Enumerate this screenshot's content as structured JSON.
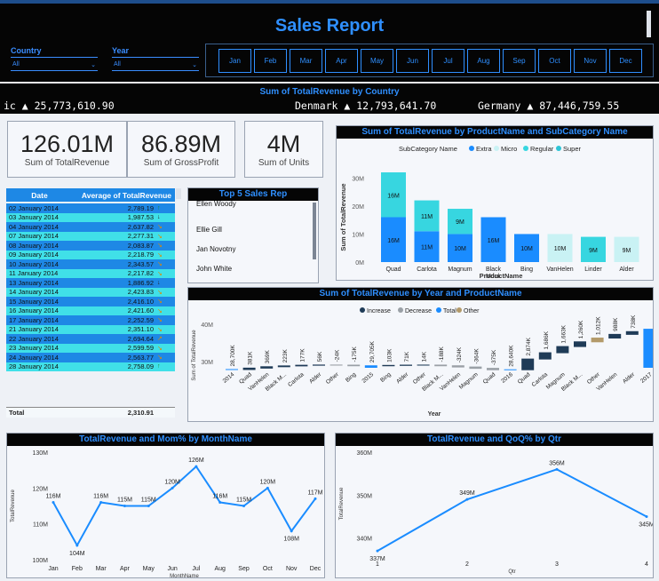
{
  "header": {
    "title": "Sales Report"
  },
  "slicers": {
    "country": {
      "label": "Country",
      "value": "All"
    },
    "year": {
      "label": "Year",
      "value": "All"
    },
    "months": [
      "Jan",
      "Feb",
      "Mar",
      "Apr",
      "May",
      "Jun",
      "Jul",
      "Aug",
      "Sep",
      "Oct",
      "Nov",
      "Dec"
    ]
  },
  "ticker": {
    "title": "Sum of TotalRevenue by Country",
    "items": [
      {
        "text": "ic ▲ 25,773,610.90"
      },
      {
        "text": "Denmark ▲ 12,793,641.70"
      },
      {
        "text": "Germany ▲ 87,446,759.55"
      }
    ]
  },
  "kpis": [
    {
      "value": "126.01M",
      "label": "Sum of TotalRevenue"
    },
    {
      "value": "86.89M",
      "label": "Sum of GrossProfit"
    },
    {
      "value": "4M",
      "label": "Sum of Units"
    }
  ],
  "date_table": {
    "col_date": "Date",
    "col_avg": "Average of TotalRevenue",
    "rows": [
      {
        "date": "02 January 2014",
        "value": "2,789.19",
        "arrow": "↑"
      },
      {
        "date": "03 January 2014",
        "value": "1,987.53",
        "arrow": "↓"
      },
      {
        "date": "04 January 2014",
        "value": "2,637.82",
        "arrow": "↘"
      },
      {
        "date": "07 January 2014",
        "value": "2,277.31",
        "arrow": "↘"
      },
      {
        "date": "08 January 2014",
        "value": "2,083.87",
        "arrow": "↘"
      },
      {
        "date": "09 January 2014",
        "value": "2,218.79",
        "arrow": "↘"
      },
      {
        "date": "10 January 2014",
        "value": "2,343.57",
        "arrow": "↘"
      },
      {
        "date": "11 January 2014",
        "value": "2,217.82",
        "arrow": "↘"
      },
      {
        "date": "13 January 2014",
        "value": "1,886.92",
        "arrow": "↓"
      },
      {
        "date": "14 January 2014",
        "value": "2,423.83",
        "arrow": "↘"
      },
      {
        "date": "15 January 2014",
        "value": "2,416.10",
        "arrow": "↘"
      },
      {
        "date": "16 January 2014",
        "value": "2,421.60",
        "arrow": "↘"
      },
      {
        "date": "17 January 2014",
        "value": "2,252.59",
        "arrow": "↘"
      },
      {
        "date": "21 January 2014",
        "value": "2,351.10",
        "arrow": "↘"
      },
      {
        "date": "22 January 2014",
        "value": "2,694.64",
        "arrow": "↗"
      },
      {
        "date": "23 January 2014",
        "value": "2,599.59",
        "arrow": "↘"
      },
      {
        "date": "24 January 2014",
        "value": "2,563.77",
        "arrow": "↘"
      },
      {
        "date": "28 January 2014",
        "value": "2,758.09",
        "arrow": "↑"
      }
    ],
    "total_label": "Total",
    "total_value": "2,310.91"
  },
  "top_reps": {
    "title": "Top 5 Sales Rep",
    "names": [
      "Ellen Woody",
      "Ellie Gill",
      "Jan Novotny",
      "John White"
    ]
  },
  "chart_data": [
    {
      "id": "product_sub",
      "type": "bar",
      "title": "Sum of TotalRevenue by ProductName and SubCategory Name",
      "legend_title": "SubCategory Name",
      "legend": [
        {
          "name": "Extra",
          "color": "#1a8cff"
        },
        {
          "name": "Micro",
          "color": "#c9f2f4"
        },
        {
          "name": "Regular",
          "color": "#37d6e0"
        },
        {
          "name": "Super",
          "color": "#2ec4d6"
        }
      ],
      "xlabel": "ProductName",
      "ylabel": "Sum of TotalRevenue",
      "yticks": [
        "0M",
        "10M",
        "20M",
        "30M"
      ],
      "ylim": [
        0,
        32
      ],
      "bars": [
        {
          "cat": "Quad",
          "segs": [
            {
              "v": 16,
              "c": "#1a8cff",
              "l": "16M"
            },
            {
              "v": 16,
              "c": "#37d6e0",
              "l": "16M"
            }
          ]
        },
        {
          "cat": "Carlota",
          "segs": [
            {
              "v": 11,
              "c": "#1a8cff",
              "l": "11M"
            },
            {
              "v": 11,
              "c": "#37d6e0",
              "l": "11M"
            }
          ]
        },
        {
          "cat": "Magnum",
          "segs": [
            {
              "v": 10,
              "c": "#1a8cff",
              "l": "10M"
            },
            {
              "v": 9,
              "c": "#37d6e0",
              "l": "9M"
            }
          ]
        },
        {
          "cat": "Black Monk",
          "segs": [
            {
              "v": 16,
              "c": "#1a8cff",
              "l": "16M"
            }
          ]
        },
        {
          "cat": "Bing",
          "segs": [
            {
              "v": 10,
              "c": "#1a8cff",
              "l": "10M"
            }
          ]
        },
        {
          "cat": "VanHelen",
          "segs": [
            {
              "v": 10,
              "c": "#c9f2f4",
              "l": "10M"
            }
          ]
        },
        {
          "cat": "Linder",
          "segs": [
            {
              "v": 9,
              "c": "#37d6e0",
              "l": "9M"
            }
          ]
        },
        {
          "cat": "Alder",
          "segs": [
            {
              "v": 9,
              "c": "#c9f2f4",
              "l": "9M"
            }
          ]
        }
      ]
    },
    {
      "id": "waterfall",
      "type": "bar",
      "title": "Sum of TotalRevenue by Year and ProductName",
      "legend": [
        {
          "name": "Increase",
          "color": "#1f3b57"
        },
        {
          "name": "Decrease",
          "color": "#9aa0a6"
        },
        {
          "name": "Total",
          "color": "#1a8cff"
        },
        {
          "name": "Other",
          "color": "#b39a6a"
        }
      ],
      "xlabel": "Year",
      "ylabel": "Sum of TotalRevenue",
      "yticks": [
        "30M",
        "40M"
      ],
      "items": [
        {
          "cat": "2014",
          "kind": "total",
          "l": "28,700K"
        },
        {
          "cat": "Quad",
          "kind": "inc",
          "l": "381K"
        },
        {
          "cat": "VanHelen",
          "kind": "inc",
          "l": "369K"
        },
        {
          "cat": "Black M...",
          "kind": "inc",
          "l": "223K"
        },
        {
          "cat": "Carlota",
          "kind": "inc",
          "l": "177K"
        },
        {
          "cat": "Alder",
          "kind": "inc",
          "l": "56K"
        },
        {
          "cat": "Other",
          "kind": "dec",
          "l": "-24K"
        },
        {
          "cat": "Bing",
          "kind": "dec",
          "l": "-175K"
        },
        {
          "cat": "2015",
          "kind": "total",
          "l": "29,705K"
        },
        {
          "cat": "Bing",
          "kind": "inc",
          "l": "103K"
        },
        {
          "cat": "Alder",
          "kind": "inc",
          "l": "71K"
        },
        {
          "cat": "Other",
          "kind": "inc",
          "l": "14K"
        },
        {
          "cat": "Black M...",
          "kind": "dec",
          "l": "-188K"
        },
        {
          "cat": "VanHelen",
          "kind": "dec",
          "l": "-324K"
        },
        {
          "cat": "Magnum",
          "kind": "dec",
          "l": "-364K"
        },
        {
          "cat": "Quad",
          "kind": "dec",
          "l": "-375K"
        },
        {
          "cat": "2016",
          "kind": "total",
          "l": "28,640K"
        },
        {
          "cat": "Quad",
          "kind": "inc",
          "l": "2,874K"
        },
        {
          "cat": "Carlota",
          "kind": "inc",
          "l": "1,686K"
        },
        {
          "cat": "Magnum",
          "kind": "inc",
          "l": "1,663K"
        },
        {
          "cat": "Black M...",
          "kind": "inc",
          "l": "1,260K"
        },
        {
          "cat": "Other",
          "kind": "other",
          "l": "1,012K"
        },
        {
          "cat": "VanHelen",
          "kind": "inc",
          "l": "988K"
        },
        {
          "cat": "Alder",
          "kind": "inc",
          "l": "738K"
        },
        {
          "cat": "2017",
          "kind": "total",
          "l": ""
        }
      ]
    },
    {
      "id": "mom",
      "type": "line",
      "title": "TotalRevenue and Mom% by MonthName",
      "xlabel": "MonthName",
      "ylabel": "TotalRevenue",
      "categories": [
        "Jan",
        "Feb",
        "Mar",
        "Apr",
        "May",
        "Jun",
        "Jul",
        "Aug",
        "Sep",
        "Oct",
        "Nov",
        "Dec"
      ],
      "values": [
        116,
        104,
        116,
        115,
        115,
        120,
        126,
        116,
        115,
        120,
        108,
        117
      ],
      "labels": [
        "116M",
        "104M",
        "116M",
        "115M",
        "115M",
        "120M",
        "126M",
        "116M",
        "115M",
        "120M",
        "108M",
        "117M"
      ],
      "yticks": [
        "100M",
        "110M",
        "120M",
        "130M"
      ],
      "ylim": [
        100,
        130
      ]
    },
    {
      "id": "qoq",
      "type": "line",
      "title": "TotalRevenue and QoQ% by Qtr",
      "xlabel": "Qtr",
      "ylabel": "TotalRevenue",
      "categories": [
        "1",
        "2",
        "3",
        "4"
      ],
      "values": [
        337,
        349,
        356,
        345
      ],
      "labels": [
        "337M",
        "349M",
        "356M",
        "345M"
      ],
      "yticks": [
        "340M",
        "350M",
        "360M"
      ],
      "ylim": [
        336,
        360
      ]
    }
  ]
}
